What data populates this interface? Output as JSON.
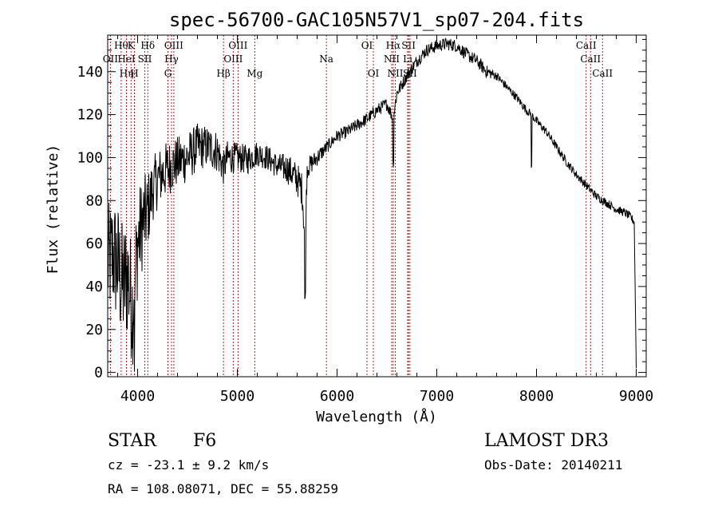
{
  "chart_data": {
    "type": "line",
    "title": "spec-56700-GAC105N57V1_sp07-204.fits",
    "xlabel": "Wavelength (Å)",
    "ylabel": "Flux (relative)",
    "xlim": [
      3700,
      9100
    ],
    "ylim": [
      -2,
      157
    ],
    "x_ticks": [
      4000,
      5000,
      6000,
      7000,
      8000,
      9000
    ],
    "y_ticks": [
      0,
      20,
      40,
      60,
      80,
      100,
      120,
      140
    ],
    "line_color": "#000000",
    "marker_color": "#b22222",
    "envelope": {
      "x": [
        3700,
        3750,
        3800,
        3850,
        3900,
        3950,
        4000,
        4050,
        4100,
        4150,
        4200,
        4300,
        4400,
        4500,
        4600,
        4700,
        4800,
        4861,
        4900,
        5000,
        5100,
        5200,
        5300,
        5400,
        5500,
        5600,
        5650,
        5680,
        5700,
        5800,
        5900,
        6000,
        6100,
        6200,
        6300,
        6400,
        6500,
        6563,
        6600,
        6700,
        6800,
        6900,
        7000,
        7100,
        7200,
        7300,
        7400,
        7500,
        7600,
        7700,
        7800,
        7900,
        7950,
        8000,
        8100,
        8200,
        8300,
        8400,
        8500,
        8600,
        8700,
        8800,
        8900,
        8950,
        8980,
        9000
      ],
      "y": [
        50,
        55,
        50,
        40,
        45,
        30,
        60,
        70,
        75,
        85,
        90,
        95,
        98,
        100,
        105,
        105,
        103,
        95,
        100,
        100,
        99,
        102,
        100,
        96,
        95,
        90,
        85,
        60,
        95,
        100,
        105,
        110,
        112,
        115,
        118,
        122,
        125,
        118,
        130,
        138,
        145,
        150,
        152,
        153,
        152,
        148,
        145,
        140,
        138,
        133,
        128,
        122,
        120,
        117,
        112,
        105,
        98,
        92,
        87,
        82,
        79,
        76,
        74,
        72,
        70,
        2
      ],
      "noise": [
        28,
        28,
        30,
        30,
        30,
        28,
        25,
        22,
        18,
        15,
        14,
        13,
        12,
        12,
        11,
        10,
        10,
        8,
        8,
        7,
        7,
        6,
        6,
        6,
        7,
        8,
        8,
        8,
        5,
        4,
        3,
        3,
        3,
        3,
        3,
        3,
        3,
        3,
        3,
        3,
        3,
        3,
        3,
        3,
        3,
        3,
        3,
        3,
        2,
        2,
        2,
        2,
        2,
        2,
        2,
        2,
        2,
        2,
        2,
        2,
        2,
        2,
        2,
        2,
        2,
        0
      ]
    },
    "absorption_dips": [
      {
        "x": 7950,
        "depth": 25
      },
      {
        "x": 6563,
        "depth": 20
      },
      {
        "x": 5680,
        "depth": 30
      },
      {
        "x": 3970,
        "depth": 25
      }
    ],
    "line_markers": [
      {
        "x": 3835,
        "label": "Hθ",
        "row": 0
      },
      {
        "x": 3727,
        "label": "OII",
        "row": 1
      },
      {
        "x": 3889,
        "label": "Hη",
        "row": 2
      },
      {
        "x": 3934,
        "label": "K",
        "row": 0
      },
      {
        "x": 3888,
        "label": "HeI",
        "row": 1
      },
      {
        "x": 3968,
        "label": "H",
        "row": 2
      },
      {
        "x": 4102,
        "label": "Hδ",
        "row": 0
      },
      {
        "x": 4072,
        "label": "SII",
        "row": 1
      },
      {
        "x": 4363,
        "label": "OIII",
        "row": 0
      },
      {
        "x": 4340,
        "label": "Hγ",
        "row": 1
      },
      {
        "x": 4304,
        "label": "G",
        "row": 2
      },
      {
        "x": 4861,
        "label": "Hβ",
        "row": 2
      },
      {
        "x": 5007,
        "label": "OIII",
        "row": 0
      },
      {
        "x": 4959,
        "label": "OIII",
        "row": 1
      },
      {
        "x": 5175,
        "label": "Mg",
        "row": 2
      },
      {
        "x": 5893,
        "label": "Na",
        "row": 1
      },
      {
        "x": 6300,
        "label": "OI",
        "row": 0
      },
      {
        "x": 6364,
        "label": "OI",
        "row": 2
      },
      {
        "x": 6563,
        "label": "Hα",
        "row": 0
      },
      {
        "x": 6548,
        "label": "NII",
        "row": 1
      },
      {
        "x": 6584,
        "label": "NII",
        "row": 2
      },
      {
        "x": 6717,
        "label": "SII",
        "row": 0
      },
      {
        "x": 6708,
        "label": "Li",
        "row": 1
      },
      {
        "x": 6731,
        "label": "SII",
        "row": 2
      },
      {
        "x": 8498,
        "label": "CaII",
        "row": 0
      },
      {
        "x": 8542,
        "label": "CaII",
        "row": 1
      },
      {
        "x": 8662,
        "label": "CaII",
        "row": 2
      }
    ]
  },
  "info": {
    "object_class": "STAR",
    "subclass": "F6",
    "survey": "LAMOST DR3",
    "redshift": "cz = -23.1 ± 9.2 km/s",
    "obs_date": "Obs-Date: 20140211",
    "coords": "RA = 108.08071, DEC =  55.88259"
  }
}
